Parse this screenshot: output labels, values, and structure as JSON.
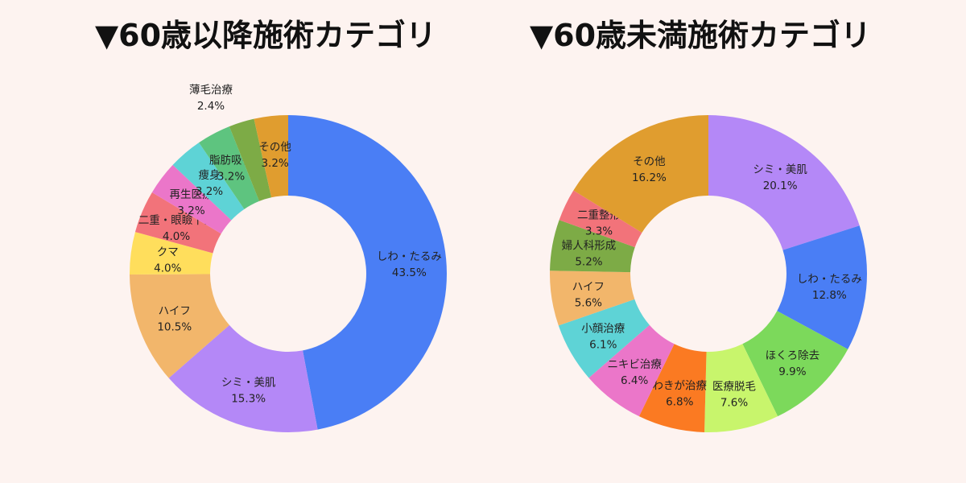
{
  "chart_data": [
    {
      "type": "pie",
      "title": "▼60歳以降施術カテゴリ",
      "donut": true,
      "slices": [
        {
          "label": "しわ・たるみ",
          "percent": "43.5%",
          "value": 43.5,
          "color": "#4a7ef5"
        },
        {
          "label": "シミ・美肌",
          "percent": "15.3%",
          "value": 15.3,
          "color": "#b488f7"
        },
        {
          "label": "ハイフ",
          "percent": "10.5%",
          "value": 10.5,
          "color": "#f2b66b"
        },
        {
          "label": "クマ",
          "percent": "4.0%",
          "value": 4.0,
          "color": "#ffde5c"
        },
        {
          "label": "二重・眼瞼下垂",
          "percent": "4.0%",
          "value": 4.0,
          "color": "#f2737a"
        },
        {
          "label": "再生医療",
          "percent": "3.2%",
          "value": 3.2,
          "color": "#eb76c9"
        },
        {
          "label": "痩身",
          "percent": "3.2%",
          "value": 3.2,
          "color": "#5ed3d6"
        },
        {
          "label": "脂肪吸引",
          "percent": "3.2%",
          "value": 3.2,
          "color": "#5ec47f"
        },
        {
          "label": "薄毛治療",
          "percent": "2.4%",
          "value": 2.4,
          "color": "#7dab46"
        },
        {
          "label": "その他",
          "percent": "3.2%",
          "value": 3.2,
          "color": "#e09d2f"
        }
      ]
    },
    {
      "type": "pie",
      "title": "▼60歳未満施術カテゴリ",
      "donut": true,
      "slices": [
        {
          "label": "シミ・美肌",
          "percent": "20.1%",
          "value": 20.1,
          "color": "#b488f7"
        },
        {
          "label": "しわ・たるみ",
          "percent": "12.8%",
          "value": 12.8,
          "color": "#4a7ef5"
        },
        {
          "label": "ほくろ除去",
          "percent": "9.9%",
          "value": 9.9,
          "color": "#7cd95b"
        },
        {
          "label": "医療脱毛",
          "percent": "7.6%",
          "value": 7.6,
          "color": "#c8f56c"
        },
        {
          "label": "わきが治療",
          "percent": "6.8%",
          "value": 6.8,
          "color": "#fb7a22"
        },
        {
          "label": "ニキビ治療",
          "percent": "6.4%",
          "value": 6.4,
          "color": "#eb76c9"
        },
        {
          "label": "小顔治療",
          "percent": "6.1%",
          "value": 6.1,
          "color": "#5ed3d6"
        },
        {
          "label": "ハイフ",
          "percent": "5.6%",
          "value": 5.6,
          "color": "#f2b66b"
        },
        {
          "label": "婦人科形成",
          "percent": "5.2%",
          "value": 5.2,
          "color": "#7dab46"
        },
        {
          "label": "二重整形",
          "percent": "3.3%",
          "value": 3.3,
          "color": "#f2737a"
        },
        {
          "label": "その他",
          "percent": "16.2%",
          "value": 16.2,
          "color": "#e09d2f"
        }
      ]
    }
  ]
}
